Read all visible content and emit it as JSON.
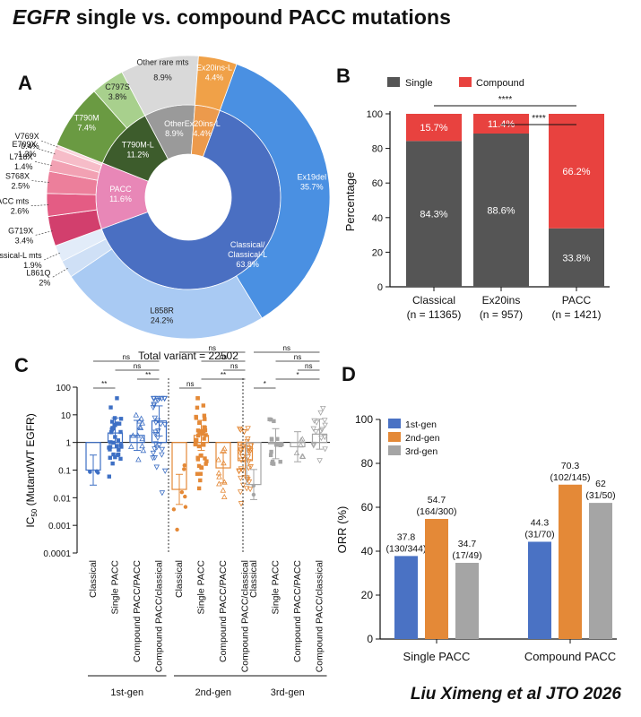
{
  "page_title": {
    "gene": "EGFR",
    "rest": " single vs. compound PACC mutations"
  },
  "footer": "Liu Ximeng et al JTO 2026",
  "colors": {
    "single": "#555555",
    "compound": "#e8423f",
    "gen1": "#4a72c4",
    "gen2": "#e48937",
    "gen3": "#a5a5a5",
    "gen1_points": "#3d6fc4",
    "gen2_points": "#e48937",
    "gen3_points": "#a5a5a5"
  },
  "chart_data": [
    {
      "panel": "A",
      "type": "pie",
      "total_label": "Total variant = 22502",
      "inner": [
        {
          "label": "Classical/ Classical-L",
          "value": "63.8%",
          "percent": 63.8,
          "color": "#4a6fc2"
        },
        {
          "label": "PACC",
          "value": "11.6%",
          "percent": 11.6,
          "color": "#e887b7"
        },
        {
          "label": "T790M-L",
          "value": "11.2%",
          "percent": 11.2,
          "color": "#3d5c2c"
        },
        {
          "label": "Other",
          "value": "8.9%",
          "percent": 8.9,
          "color": "#9a9a9a"
        },
        {
          "label": "Ex20ins-L",
          "value": "4.4%",
          "percent": 4.4,
          "color": "#ec9a4c"
        }
      ],
      "outer": [
        {
          "label": "Ex19del",
          "value": "35.7%",
          "percent": 35.7,
          "color": "#4a90e2"
        },
        {
          "label": "L858R",
          "value": "24.2%",
          "percent": 24.2,
          "color": "#a9caf3"
        },
        {
          "label": "L861Q",
          "value": "2%",
          "percent": 2.0,
          "color": "#cfe0f6"
        },
        {
          "label": "Other classical-L mts",
          "value": "1.9%",
          "percent": 1.9,
          "color": "#e2ecf9"
        },
        {
          "label": "G719X",
          "value": "3.4%",
          "percent": 3.4,
          "color": "#d23f6d"
        },
        {
          "label": "Other PACC mts",
          "value": "2.6%",
          "percent": 2.6,
          "color": "#e45c84"
        },
        {
          "label": "S768X",
          "value": "2.5%",
          "percent": 2.5,
          "color": "#ec7f9b"
        },
        {
          "label": "L718X",
          "value": "1.4%",
          "percent": 1.4,
          "color": "#f2a1b3"
        },
        {
          "label": "E709X",
          "value": "1.3%",
          "percent": 1.3,
          "color": "#f6bcc8"
        },
        {
          "label": "V769X",
          "value": "0.4%",
          "percent": 0.4,
          "color": "#fad6dd"
        },
        {
          "label": "T790M",
          "value": "7.4%",
          "percent": 7.4,
          "color": "#6a9a42"
        },
        {
          "label": "C797S",
          "value": "3.8%",
          "percent": 3.8,
          "color": "#a8d08d"
        },
        {
          "label": "Other rare mts",
          "value": "8.9%",
          "percent": 8.9,
          "color": "#d9d9d9"
        },
        {
          "label": "Ex20ins-L",
          "value": "4.4%",
          "percent": 4.4,
          "color": "#f0a148"
        }
      ]
    },
    {
      "panel": "B",
      "type": "bar",
      "stacked": true,
      "ylabel": "Percentage",
      "ylim": [
        0,
        100
      ],
      "yticks": [
        0,
        20,
        40,
        60,
        80,
        100
      ],
      "legend": [
        "Single",
        "Compound"
      ],
      "categories": [
        "Classical",
        "Ex20ins",
        "PACC"
      ],
      "category_counts": [
        "(n = 11365)",
        "(n = 957)",
        "(n = 1421)"
      ],
      "series": [
        {
          "name": "Single",
          "values": [
            84.3,
            88.6,
            33.8
          ],
          "labels": [
            "84.3%",
            "88.6%",
            "33.8%"
          ]
        },
        {
          "name": "Compound",
          "values": [
            15.7,
            11.4,
            66.2
          ],
          "labels": [
            "15.7%",
            "11.4%",
            "66.2%"
          ]
        }
      ],
      "significance": [
        {
          "from": "Classical",
          "to": "PACC",
          "label": "****"
        },
        {
          "from": "Ex20ins",
          "to": "PACC",
          "label": "****"
        }
      ]
    },
    {
      "panel": "C",
      "type": "scatter",
      "ylabel": "IC50 (Mutant/WT EGFR)",
      "ylabel_main": "IC",
      "ylabel_sub": "50",
      "ylabel_rest": " (Mutant/WT EGFR)",
      "log_scale": true,
      "ylim": [
        0.0001,
        100
      ],
      "ytick_labels": [
        "100",
        "10",
        "1",
        "0.1",
        "0.01",
        "0.001",
        "0.0001"
      ],
      "groups": [
        {
          "name": "1st-gen",
          "categories": [
            "Classical",
            "Single PACC",
            "Compound PACC/PACC",
            "Compound PACC/classical"
          ],
          "means": [
            0.1,
            2.2,
            1.8,
            6
          ],
          "sig": [
            {
              "a": 0,
              "b": 3,
              "label": "ns"
            },
            {
              "a": 1,
              "b": 3,
              "label": "ns"
            },
            {
              "a": 2,
              "b": 3,
              "label": "**"
            },
            {
              "a": 0,
              "b": 1,
              "label": "**"
            }
          ]
        },
        {
          "name": "2nd-gen",
          "categories": [
            "Classical",
            "Single PACC",
            "Compound PACC/PACC",
            "Compound PACC/classical"
          ],
          "means": [
            0.02,
            1.8,
            0.12,
            0.22
          ],
          "sig": [
            {
              "a": 0,
              "b": 3,
              "label": "ns"
            },
            {
              "a": 1,
              "b": 3,
              "label": "ns"
            },
            {
              "a": 2,
              "b": 3,
              "label": "ns"
            },
            {
              "a": 1,
              "b": 3,
              "label": "**"
            },
            {
              "a": 0,
              "b": 1,
              "label": "ns"
            }
          ]
        },
        {
          "name": "3rd-gen",
          "categories": [
            "Classical",
            "Single PACC",
            "Compound PACC/PACC",
            "Compound PACC/classical"
          ],
          "means": [
            0.03,
            0.9,
            0.7,
            2.0
          ],
          "sig": [
            {
              "a": 0,
              "b": 3,
              "label": "ns"
            },
            {
              "a": 1,
              "b": 3,
              "label": "ns"
            },
            {
              "a": 2,
              "b": 3,
              "label": "ns"
            },
            {
              "a": 1,
              "b": 3,
              "label": "*"
            },
            {
              "a": 0,
              "b": 1,
              "label": "*"
            }
          ]
        }
      ]
    },
    {
      "panel": "D",
      "type": "bar",
      "ylabel": "ORR (%)",
      "ylim": [
        0,
        100
      ],
      "yticks": [
        0,
        20,
        40,
        60,
        80,
        100
      ],
      "legend": [
        "1st-gen",
        "2nd-gen",
        "3rd-gen"
      ],
      "categories": [
        "Single PACC",
        "Compound PACC"
      ],
      "series": [
        {
          "name": "1st-gen",
          "values": [
            37.8,
            44.3
          ],
          "labels": [
            "37.8",
            "44.3"
          ],
          "fractions": [
            "(130/344)",
            "(31/70)"
          ]
        },
        {
          "name": "2nd-gen",
          "values": [
            54.7,
            70.3
          ],
          "labels": [
            "54.7",
            "70.3"
          ],
          "fractions": [
            "(164/300)",
            "(102/145)"
          ]
        },
        {
          "name": "3rd-gen",
          "values": [
            34.7,
            62
          ],
          "labels": [
            "34.7",
            "62"
          ],
          "fractions": [
            "(17/49)",
            "(31/50)"
          ]
        }
      ]
    }
  ]
}
